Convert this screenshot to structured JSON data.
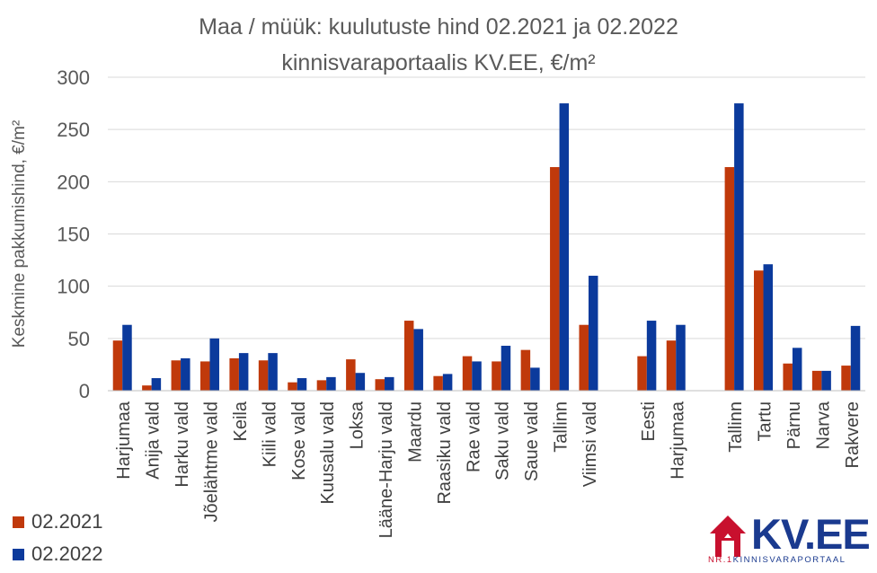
{
  "chart_data": {
    "type": "bar",
    "title": [
      "Maa / müük: kuulutuste hind 02.2021 ja 02.2022",
      "kinnisvaraportaalis KV.EE, €/m²"
    ],
    "ylabel": "Keskmine pakkumishind, €/m²",
    "ylim": [
      0,
      300
    ],
    "yticks": [
      0,
      50,
      100,
      150,
      200,
      250,
      300
    ],
    "grid": true,
    "legend_position": "bottom-left",
    "categories": [
      "Harjumaa",
      "Anija vald",
      "Harku vald",
      "Jõelähtme vald",
      "Keila",
      "Kiili vald",
      "Kose vald",
      "Kuusalu vald",
      "Loksa",
      "Lääne-Harju vald",
      "Maardu",
      "Raasiku vald",
      "Rae vald",
      "Saku vald",
      "Saue vald",
      "Tallinn",
      "Viimsi vald",
      "",
      "Eesti",
      "Harjumaa",
      "",
      "Tallinn",
      "Tartu",
      "Pärnu",
      "Narva",
      "Rakvere"
    ],
    "series": [
      {
        "name": "02.2021",
        "color": "#c0390b",
        "values": [
          48,
          5,
          29,
          28,
          31,
          29,
          8,
          10,
          30,
          11,
          67,
          14,
          33,
          28,
          39,
          214,
          63,
          null,
          33,
          48,
          null,
          214,
          115,
          26,
          19,
          24
        ]
      },
      {
        "name": "02.2022",
        "color": "#0b3a9c",
        "values": [
          63,
          12,
          31,
          50,
          36,
          36,
          12,
          13,
          17,
          13,
          59,
          16,
          28,
          43,
          22,
          275,
          110,
          null,
          67,
          63,
          null,
          275,
          121,
          41,
          19,
          62
        ]
      }
    ]
  },
  "logo": {
    "text": "KV.EE",
    "sub_nr": "NR.1",
    "sub_text": "KINNISVARAPORTAAL"
  }
}
